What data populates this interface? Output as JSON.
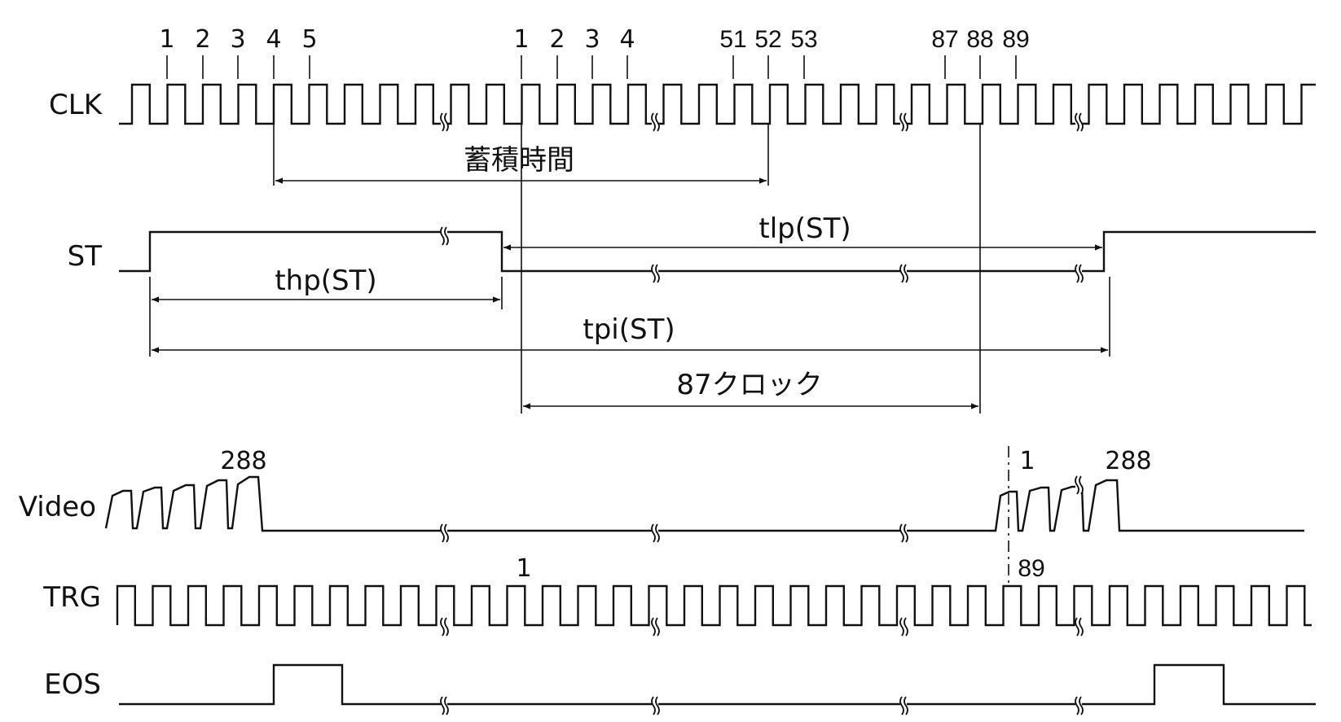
{
  "signals": {
    "clk": "CLK",
    "st": "ST",
    "video": "Video",
    "trg": "TRG",
    "eos": "EOS"
  },
  "clk_numbers": {
    "group1": [
      "1",
      "2",
      "3",
      "4",
      "5"
    ],
    "group2": [
      "1",
      "2",
      "3",
      "4"
    ],
    "group3": [
      "51",
      "52",
      "53"
    ],
    "group4": [
      "87",
      "88",
      "89"
    ]
  },
  "spans": {
    "accumulation": "蓄積時間",
    "tlp": "tlp(ST)",
    "thp": "thp(ST)",
    "tpi": "tpi(ST)",
    "clocks87": "87クロック"
  },
  "video_labels": {
    "first_last": "288",
    "next_first": "1",
    "next_last": "288"
  },
  "trg_labels": {
    "first": "1",
    "last": "89"
  }
}
